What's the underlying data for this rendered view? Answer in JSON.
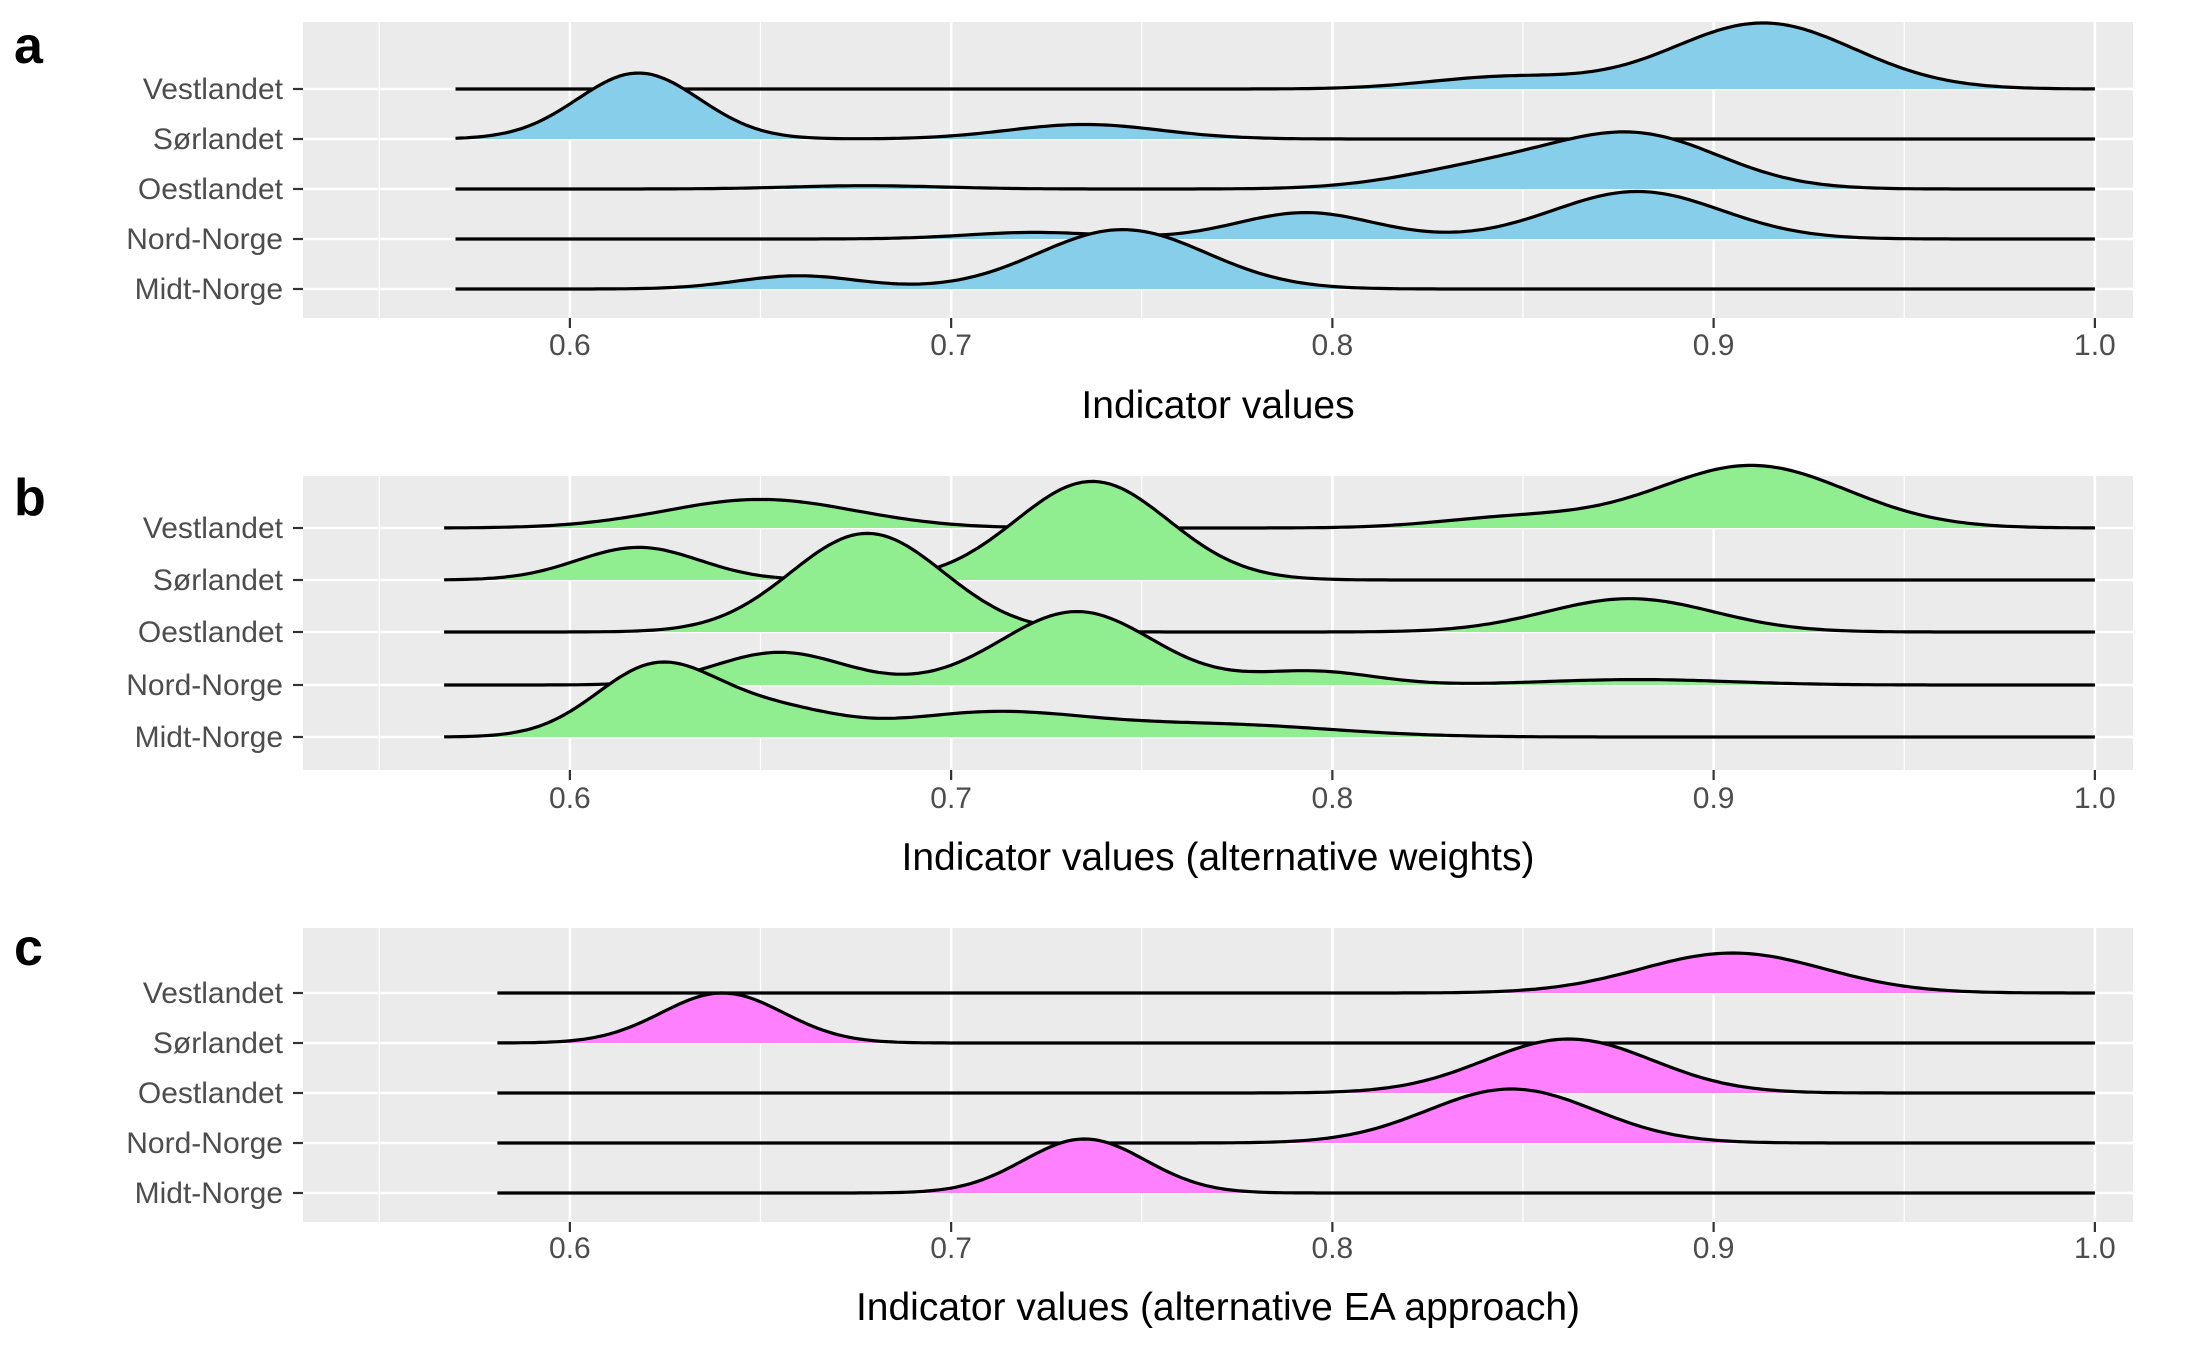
{
  "colors": {
    "panel_a_fill": "#87CEEB",
    "panel_b_fill": "#90EE90",
    "panel_c_fill": "#FF80FF",
    "panel_background": "#EBEBEB",
    "grid": "#FFFFFF",
    "line": "#000000",
    "tick_text": "#4D4D4D"
  },
  "chart_data": [
    {
      "type": "ridgeline",
      "panel_label": "a",
      "xlabel": "Indicator values",
      "ylabel": "",
      "xlim": [
        0.53,
        1.01
      ],
      "xticks": [
        0.6,
        0.7,
        0.8,
        0.9,
        1.0
      ],
      "xtick_labels": [
        "0.6",
        "0.7",
        "0.8",
        "0.9",
        "1.0"
      ],
      "x_range": [
        0.57,
        1.0
      ],
      "grid": true,
      "fill_color": "#87CEEB",
      "categories": [
        "Vestlandet",
        "Sørlandet",
        "Oestlandet",
        "Nord-Norge",
        "Midt-Norge"
      ],
      "series": [
        {
          "category": "Vestlandet",
          "peaks": [
            {
              "x": 0.845,
              "sd": 0.02,
              "h": 0.18
            },
            {
              "x": 0.913,
              "sd": 0.024,
              "h": 1.0
            }
          ]
        },
        {
          "category": "Sørlandet",
          "peaks": [
            {
              "x": 0.618,
              "sd": 0.016,
              "h": 1.0
            },
            {
              "x": 0.735,
              "sd": 0.02,
              "h": 0.22
            }
          ]
        },
        {
          "category": "Oestlandet",
          "peaks": [
            {
              "x": 0.678,
              "sd": 0.02,
              "h": 0.05
            },
            {
              "x": 0.84,
              "sd": 0.022,
              "h": 0.3
            },
            {
              "x": 0.88,
              "sd": 0.022,
              "h": 0.8
            }
          ]
        },
        {
          "category": "Nord-Norge",
          "peaks": [
            {
              "x": 0.722,
              "sd": 0.018,
              "h": 0.1
            },
            {
              "x": 0.793,
              "sd": 0.018,
              "h": 0.4
            },
            {
              "x": 0.88,
              "sd": 0.022,
              "h": 0.72
            }
          ]
        },
        {
          "category": "Midt-Norge",
          "peaks": [
            {
              "x": 0.66,
              "sd": 0.016,
              "h": 0.2
            },
            {
              "x": 0.745,
              "sd": 0.022,
              "h": 0.9
            }
          ]
        }
      ]
    },
    {
      "type": "ridgeline",
      "panel_label": "b",
      "xlabel": "Indicator values (alternative weights)",
      "ylabel": "",
      "xlim": [
        0.53,
        1.01
      ],
      "xticks": [
        0.6,
        0.7,
        0.8,
        0.9,
        1.0
      ],
      "xtick_labels": [
        "0.6",
        "0.7",
        "0.8",
        "0.9",
        "1.0"
      ],
      "x_range": [
        0.567,
        1.0
      ],
      "grid": true,
      "fill_color": "#90EE90",
      "categories": [
        "Vestlandet",
        "Sørlandet",
        "Oestlandet",
        "Nord-Norge",
        "Midt-Norge"
      ],
      "series": [
        {
          "category": "Vestlandet",
          "peaks": [
            {
              "x": 0.65,
              "sd": 0.025,
              "h": 0.42
            },
            {
              "x": 0.848,
              "sd": 0.02,
              "h": 0.15
            },
            {
              "x": 0.91,
              "sd": 0.025,
              "h": 0.92
            }
          ]
        },
        {
          "category": "Sørlandet",
          "peaks": [
            {
              "x": 0.618,
              "sd": 0.016,
              "h": 0.48
            },
            {
              "x": 0.737,
              "sd": 0.02,
              "h": 1.45
            }
          ]
        },
        {
          "category": "Oestlandet",
          "peaks": [
            {
              "x": 0.678,
              "sd": 0.02,
              "h": 1.45
            },
            {
              "x": 0.878,
              "sd": 0.022,
              "h": 0.49
            }
          ]
        },
        {
          "category": "Nord-Norge",
          "peaks": [
            {
              "x": 0.655,
              "sd": 0.017,
              "h": 0.48
            },
            {
              "x": 0.733,
              "sd": 0.02,
              "h": 1.08
            },
            {
              "x": 0.795,
              "sd": 0.016,
              "h": 0.2
            },
            {
              "x": 0.88,
              "sd": 0.025,
              "h": 0.08
            }
          ]
        },
        {
          "category": "Midt-Norge",
          "peaks": [
            {
              "x": 0.623,
              "sd": 0.016,
              "h": 1.05
            },
            {
              "x": 0.655,
              "sd": 0.016,
              "h": 0.35
            },
            {
              "x": 0.71,
              "sd": 0.025,
              "h": 0.35
            },
            {
              "x": 0.77,
              "sd": 0.03,
              "h": 0.18
            }
          ]
        }
      ]
    },
    {
      "type": "ridgeline",
      "panel_label": "c",
      "xlabel": "Indicator values (alternative EA approach)",
      "ylabel": "",
      "xlim": [
        0.53,
        1.01
      ],
      "xticks": [
        0.6,
        0.7,
        0.8,
        0.9,
        1.0
      ],
      "xtick_labels": [
        "0.6",
        "0.7",
        "0.8",
        "0.9",
        "1.0"
      ],
      "x_range": [
        0.581,
        1.0
      ],
      "grid": true,
      "fill_color": "#FF80FF",
      "categories": [
        "Vestlandet",
        "Sørlandet",
        "Oestlandet",
        "Nord-Norge",
        "Midt-Norge"
      ],
      "series": [
        {
          "category": "Vestlandet",
          "peaks": [
            {
              "x": 0.905,
              "sd": 0.024,
              "h": 1.0
            }
          ]
        },
        {
          "category": "Sørlandet",
          "peaks": [
            {
              "x": 0.64,
              "sd": 0.016,
              "h": 1.25
            }
          ]
        },
        {
          "category": "Oestlandet",
          "peaks": [
            {
              "x": 0.862,
              "sd": 0.022,
              "h": 1.35
            }
          ]
        },
        {
          "category": "Nord-Norge",
          "peaks": [
            {
              "x": 0.847,
              "sd": 0.022,
              "h": 1.35
            }
          ]
        },
        {
          "category": "Midt-Norge",
          "peaks": [
            {
              "x": 0.735,
              "sd": 0.016,
              "h": 1.35
            }
          ]
        }
      ]
    }
  ]
}
